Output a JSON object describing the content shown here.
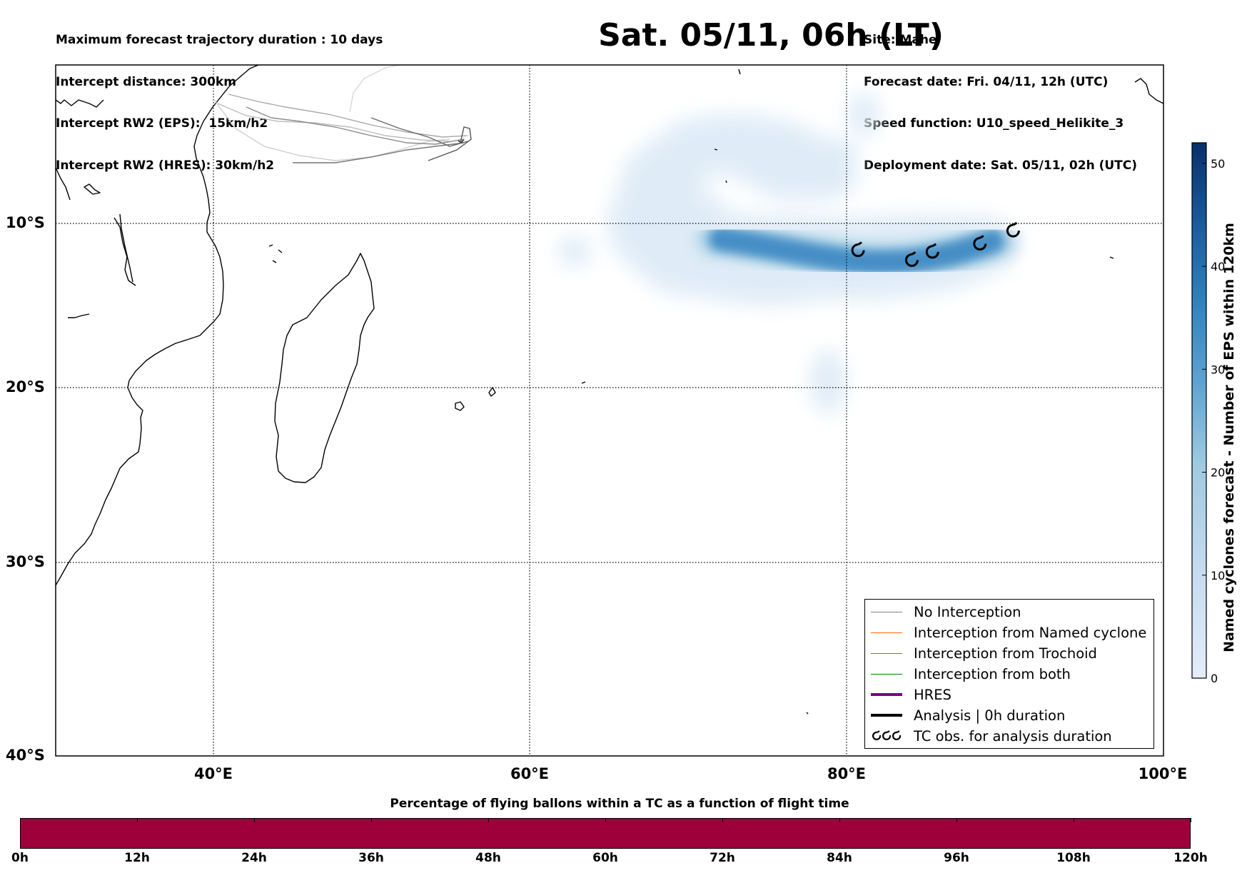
{
  "header": {
    "left_lines": [
      "Maximum forecast trajectory duration : 10 days",
      "Intercept distance: 300km",
      "Intercept RW2 (EPS):  15km/h2",
      "Intercept RW2 (HRES): 30km/h2"
    ],
    "title": "Sat. 05/11, 06h (LT)",
    "right_lines": [
      "Site: Mahe",
      "Forecast date: Fri. 04/11, 12h (UTC)",
      "Speed function: U10_speed_Helikite_3",
      "Deployment date: Sat. 05/11, 02h (UTC)"
    ]
  },
  "map": {
    "lat_labels": [
      "10°S",
      "20°S",
      "30°S",
      "40°S"
    ],
    "lon_labels": [
      "40°E",
      "60°E",
      "80°E",
      "100°E"
    ],
    "extent": {
      "lon_min": 30,
      "lon_max": 100,
      "lat_top": -0.5,
      "lat_bottom": -40
    }
  },
  "legend": {
    "items": [
      {
        "label": "No Interception",
        "color": "#808080",
        "style": "thin"
      },
      {
        "label": "Interception from Named cyclone",
        "color": "#ff6a00",
        "style": "thin"
      },
      {
        "label": "Interception from Trochoid",
        "color": "#808000",
        "style": "thin"
      },
      {
        "label": "Interception from both",
        "color": "#008000",
        "style": "thin"
      },
      {
        "label": "HRES",
        "color": "#800080",
        "style": "thick"
      },
      {
        "label": "Analysis | 0h duration",
        "color": "#000000",
        "style": "thick"
      },
      {
        "label": "TC obs. for analysis duration",
        "color": "#000000",
        "style": "symbol"
      }
    ]
  },
  "colorbar": {
    "label": "Named cyclones forecast - Number of EPS within 120km",
    "ticks": [
      "0",
      "10",
      "20",
      "30",
      "40",
      "50"
    ],
    "max": 52,
    "colors": {
      "low": "#e3eef9",
      "high": "#08306b"
    }
  },
  "timebar": {
    "title": "Percentage of flying ballons within a TC as a function of flight time",
    "ticks": [
      "0h",
      "12h",
      "24h",
      "36h",
      "48h",
      "60h",
      "72h",
      "84h",
      "96h",
      "108h",
      "120h"
    ],
    "color": "#9e003a"
  },
  "tc_observations": [
    {
      "lon": 80.7,
      "lat": -12.0
    },
    {
      "lon": 84.1,
      "lat": -12.6
    },
    {
      "lon": 85.4,
      "lat": -12.1
    },
    {
      "lon": 88.4,
      "lat": -11.6
    },
    {
      "lon": 90.5,
      "lat": -10.8
    }
  ]
}
